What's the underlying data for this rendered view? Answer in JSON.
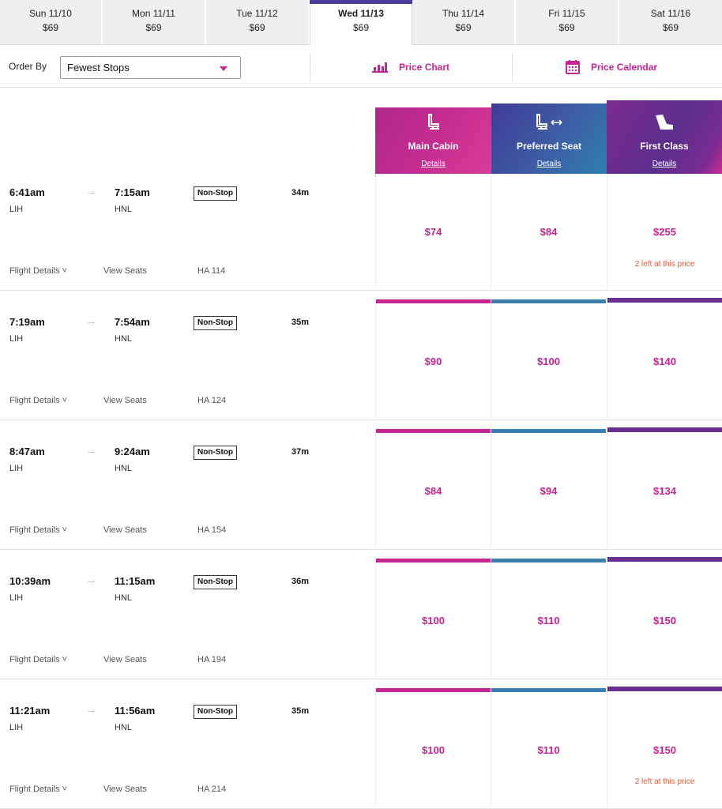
{
  "date_tabs": [
    {
      "day": "Sun 11/10",
      "price": "$69",
      "active": false
    },
    {
      "day": "Mon 11/11",
      "price": "$69",
      "active": false
    },
    {
      "day": "Tue 11/12",
      "price": "$69",
      "active": false
    },
    {
      "day": "Wed 11/13",
      "price": "$69",
      "active": true
    },
    {
      "day": "Thu 11/14",
      "price": "$69",
      "active": false
    },
    {
      "day": "Fri 11/15",
      "price": "$69",
      "active": false
    },
    {
      "day": "Sat 11/16",
      "price": "$69",
      "active": false
    }
  ],
  "toolbar": {
    "order_by_label": "Order By",
    "order_by_value": "Fewest Stops",
    "price_chart": "Price Chart",
    "price_calendar": "Price Calendar"
  },
  "fare_classes": [
    {
      "name": "Main Cabin",
      "details": "Details",
      "icon": "seat-icon",
      "color": "#c4258f"
    },
    {
      "name": "Preferred Seat",
      "details": "Details",
      "icon": "seat-extra-legroom-icon",
      "color": "#3c7fae"
    },
    {
      "name": "First Class",
      "details": "Details",
      "icon": "first-class-seat-icon",
      "color": "#6a2e8e"
    }
  ],
  "flights": [
    {
      "depart": "6:41am",
      "arrive": "7:15am",
      "from": "LIH",
      "to": "HNL",
      "stops": "Non-Stop",
      "duration": "34m",
      "flight_details": "Flight Details",
      "view_seats": "View Seats",
      "flight_number": "HA 114",
      "prices": [
        "$74",
        "$84",
        "$255"
      ],
      "notes": [
        "",
        "",
        "2 left at this price"
      ]
    },
    {
      "depart": "7:19am",
      "arrive": "7:54am",
      "from": "LIH",
      "to": "HNL",
      "stops": "Non-Stop",
      "duration": "35m",
      "flight_details": "Flight Details",
      "view_seats": "View Seats",
      "flight_number": "HA 124",
      "prices": [
        "$90",
        "$100",
        "$140"
      ],
      "notes": [
        "",
        "",
        ""
      ]
    },
    {
      "depart": "8:47am",
      "arrive": "9:24am",
      "from": "LIH",
      "to": "HNL",
      "stops": "Non-Stop",
      "duration": "37m",
      "flight_details": "Flight Details",
      "view_seats": "View Seats",
      "flight_number": "HA 154",
      "prices": [
        "$84",
        "$94",
        "$134"
      ],
      "notes": [
        "",
        "",
        ""
      ]
    },
    {
      "depart": "10:39am",
      "arrive": "11:15am",
      "from": "LIH",
      "to": "HNL",
      "stops": "Non-Stop",
      "duration": "36m",
      "flight_details": "Flight Details",
      "view_seats": "View Seats",
      "flight_number": "HA 194",
      "prices": [
        "$100",
        "$110",
        "$150"
      ],
      "notes": [
        "",
        "",
        ""
      ]
    },
    {
      "depart": "11:21am",
      "arrive": "11:56am",
      "from": "LIH",
      "to": "HNL",
      "stops": "Non-Stop",
      "duration": "35m",
      "flight_details": "Flight Details",
      "view_seats": "View Seats",
      "flight_number": "HA 214",
      "prices": [
        "$100",
        "$110",
        "$150"
      ],
      "notes": [
        "",
        "",
        "2 left at this price"
      ]
    }
  ]
}
